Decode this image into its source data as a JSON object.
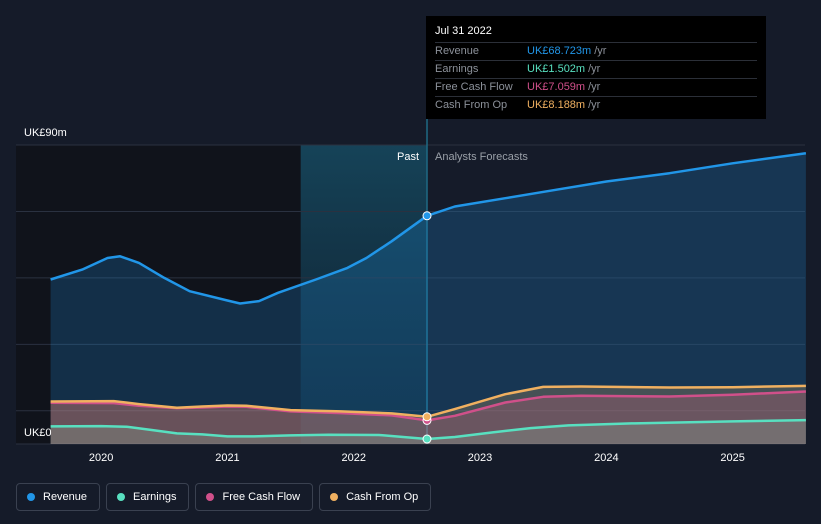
{
  "chart_data": {
    "type": "line",
    "x_axis": {
      "ticks": [
        "2020",
        "2021",
        "2022",
        "2023",
        "2024",
        "2025"
      ]
    },
    "y_axis": {
      "top_label": "UK£90m",
      "bottom_label": "UK£0",
      "ylim": [
        0,
        90
      ]
    },
    "segments": {
      "past_label": "Past",
      "forecast_label": "Analysts Forecasts"
    },
    "grid": true,
    "highlight_x": 2022.58,
    "shaded_range": [
      2021.58,
      2022.58
    ],
    "series": [
      {
        "name": "Revenue",
        "color": "#2196e8",
        "points": [
          [
            2019.6,
            49.5
          ],
          [
            2019.85,
            52.5
          ],
          [
            2020.05,
            56
          ],
          [
            2020.15,
            56.5
          ],
          [
            2020.3,
            54.5
          ],
          [
            2020.5,
            50
          ],
          [
            2020.7,
            46
          ],
          [
            2021.0,
            43.2
          ],
          [
            2021.1,
            42.3
          ],
          [
            2021.25,
            43
          ],
          [
            2021.4,
            45.5
          ],
          [
            2021.7,
            49.5
          ],
          [
            2021.95,
            53
          ],
          [
            2022.1,
            56
          ],
          [
            2022.3,
            61
          ],
          [
            2022.58,
            68.7
          ],
          [
            2022.8,
            71.5
          ],
          [
            2023.2,
            74
          ],
          [
            2023.6,
            76.5
          ],
          [
            2024.0,
            79
          ],
          [
            2024.5,
            81.5
          ],
          [
            2025.0,
            84.5
          ],
          [
            2025.58,
            87.5
          ]
        ]
      },
      {
        "name": "Earnings",
        "color": "#58e0c0",
        "points": [
          [
            2019.6,
            5.3
          ],
          [
            2020.0,
            5.4
          ],
          [
            2020.2,
            5.2
          ],
          [
            2020.4,
            4.2
          ],
          [
            2020.6,
            3.2
          ],
          [
            2020.8,
            2.9
          ],
          [
            2021.0,
            2.3
          ],
          [
            2021.2,
            2.3
          ],
          [
            2021.5,
            2.6
          ],
          [
            2021.8,
            2.8
          ],
          [
            2022.2,
            2.7
          ],
          [
            2022.58,
            1.5
          ],
          [
            2022.8,
            2.1
          ],
          [
            2023.1,
            3.5
          ],
          [
            2023.4,
            4.8
          ],
          [
            2023.7,
            5.6
          ],
          [
            2024.2,
            6.2
          ],
          [
            2025.0,
            6.8
          ],
          [
            2025.58,
            7.2
          ]
        ]
      },
      {
        "name": "Free Cash Flow",
        "color": "#d0508a",
        "points": [
          [
            2019.6,
            12.4
          ],
          [
            2020.1,
            12.3
          ],
          [
            2020.3,
            11.5
          ],
          [
            2020.6,
            10.8
          ],
          [
            2020.8,
            11
          ],
          [
            2021.0,
            11.3
          ],
          [
            2021.15,
            11.2
          ],
          [
            2021.5,
            9.8
          ],
          [
            2021.9,
            9.3
          ],
          [
            2022.3,
            8.6
          ],
          [
            2022.58,
            7.1
          ],
          [
            2022.8,
            8.5
          ],
          [
            2023.2,
            12.5
          ],
          [
            2023.5,
            14.2
          ],
          [
            2023.8,
            14.5
          ],
          [
            2024.5,
            14.3
          ],
          [
            2025.0,
            14.8
          ],
          [
            2025.58,
            15.8
          ]
        ]
      },
      {
        "name": "Cash From Op",
        "color": "#f0b060",
        "points": [
          [
            2019.6,
            12.8
          ],
          [
            2020.1,
            12.9
          ],
          [
            2020.3,
            12
          ],
          [
            2020.6,
            10.9
          ],
          [
            2020.8,
            11.3
          ],
          [
            2021.0,
            11.6
          ],
          [
            2021.15,
            11.5
          ],
          [
            2021.5,
            10.2
          ],
          [
            2021.9,
            9.8
          ],
          [
            2022.3,
            9.2
          ],
          [
            2022.58,
            8.2
          ],
          [
            2022.8,
            10.5
          ],
          [
            2023.2,
            15
          ],
          [
            2023.5,
            17.2
          ],
          [
            2023.8,
            17.3
          ],
          [
            2024.5,
            17
          ],
          [
            2025.0,
            17.1
          ],
          [
            2025.58,
            17.5
          ]
        ]
      }
    ]
  },
  "tooltip": {
    "date": "Jul 31 2022",
    "rows": [
      {
        "label": "Revenue",
        "value": "UK£68.723m",
        "unit": "/yr",
        "color": "#2196e8"
      },
      {
        "label": "Earnings",
        "value": "UK£1.502m",
        "unit": "/yr",
        "color": "#58e0c0"
      },
      {
        "label": "Free Cash Flow",
        "value": "UK£7.059m",
        "unit": "/yr",
        "color": "#d0508a"
      },
      {
        "label": "Cash From Op",
        "value": "UK£8.188m",
        "unit": "/yr",
        "color": "#f0b060"
      }
    ]
  },
  "legend": [
    {
      "label": "Revenue",
      "color": "#2196e8"
    },
    {
      "label": "Earnings",
      "color": "#58e0c0"
    },
    {
      "label": "Free Cash Flow",
      "color": "#d0508a"
    },
    {
      "label": "Cash From Op",
      "color": "#f0b060"
    }
  ]
}
